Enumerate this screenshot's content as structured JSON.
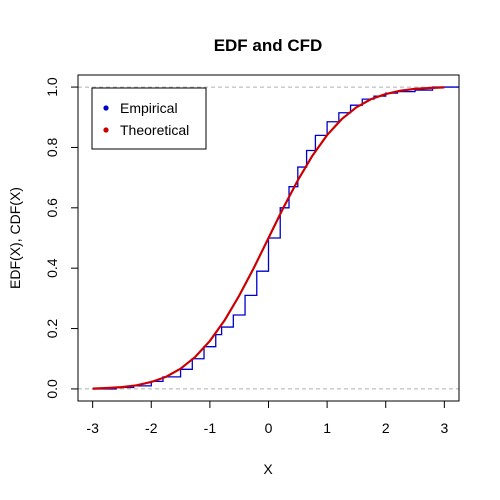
{
  "chart_data": {
    "type": "line",
    "title": "EDF and CFD",
    "xlabel": "X",
    "ylabel": "EDF(X), CDF(X)",
    "xlim": [
      -3.25,
      3.25
    ],
    "ylim": [
      -0.04,
      1.04
    ],
    "x_ticks": [
      "-3",
      "-2",
      "-1",
      "0",
      "1",
      "2",
      "3"
    ],
    "y_ticks": [
      "0.0",
      "0.2",
      "0.4",
      "0.6",
      "0.8",
      "1.0"
    ],
    "reference_lines": [
      0,
      1
    ],
    "legend_position": "top-left",
    "colors": {
      "empirical": "#0000cc",
      "theoretical": "#cc0000",
      "reference": "#b0b0b0"
    },
    "series": [
      {
        "name": "Empirical",
        "style": "step",
        "x": [
          -3.0,
          -2.6,
          -2.3,
          -2.0,
          -1.8,
          -1.5,
          -1.3,
          -1.1,
          -0.9,
          -0.8,
          -0.6,
          -0.4,
          -0.2,
          0.0,
          0.2,
          0.35,
          0.5,
          0.65,
          0.8,
          1.0,
          1.2,
          1.4,
          1.6,
          1.8,
          2.0,
          2.2,
          2.5,
          2.8,
          3.0,
          3.25
        ],
        "y": [
          0.0,
          0.005,
          0.01,
          0.025,
          0.04,
          0.065,
          0.1,
          0.14,
          0.18,
          0.205,
          0.245,
          0.31,
          0.39,
          0.5,
          0.6,
          0.67,
          0.735,
          0.79,
          0.84,
          0.885,
          0.915,
          0.94,
          0.96,
          0.97,
          0.98,
          0.985,
          0.99,
          1.0,
          1.0,
          1.0
        ]
      },
      {
        "name": "Theoretical",
        "style": "line",
        "x": [
          -3.0,
          -2.75,
          -2.5,
          -2.25,
          -2.0,
          -1.75,
          -1.5,
          -1.25,
          -1.0,
          -0.75,
          -0.5,
          -0.25,
          0.0,
          0.25,
          0.5,
          0.75,
          1.0,
          1.25,
          1.5,
          1.75,
          2.0,
          2.25,
          2.5,
          2.75,
          3.0
        ],
        "y": [
          0.001,
          0.003,
          0.006,
          0.012,
          0.023,
          0.04,
          0.067,
          0.106,
          0.159,
          0.227,
          0.309,
          0.401,
          0.5,
          0.599,
          0.691,
          0.773,
          0.841,
          0.894,
          0.933,
          0.96,
          0.977,
          0.988,
          0.994,
          0.997,
          0.999
        ]
      }
    ]
  }
}
